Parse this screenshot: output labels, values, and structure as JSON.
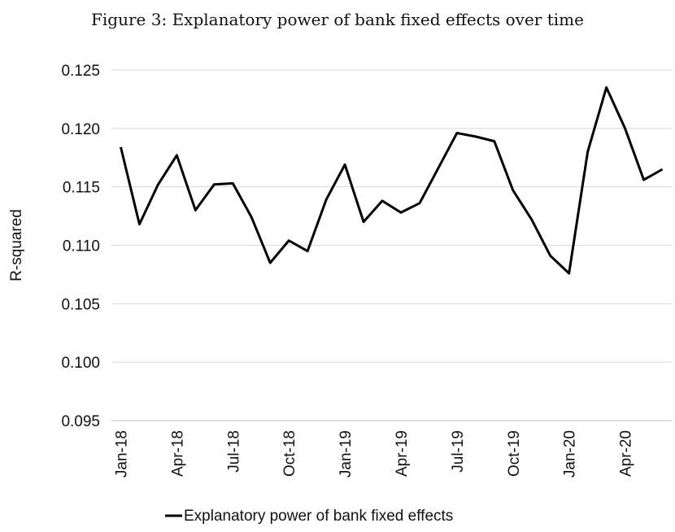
{
  "caption": "Figure 3: Explanatory power of bank fixed effects over time",
  "chart_data": {
    "type": "line",
    "title": "",
    "xlabel": "",
    "ylabel": "R-squared",
    "ylim": [
      0.095,
      0.125
    ],
    "yticks": [
      "0.095",
      "0.100",
      "0.105",
      "0.110",
      "0.115",
      "0.120",
      "0.125"
    ],
    "grid": true,
    "legend_position": "bottom",
    "x": [
      "Jan-18",
      "Feb-18",
      "Mar-18",
      "Apr-18",
      "May-18",
      "Jun-18",
      "Jul-18",
      "Aug-18",
      "Sep-18",
      "Oct-18",
      "Nov-18",
      "Dec-18",
      "Jan-19",
      "Feb-19",
      "Mar-19",
      "Apr-19",
      "May-19",
      "Jun-19",
      "Jul-19",
      "Aug-19",
      "Sep-19",
      "Oct-19",
      "Nov-19",
      "Dec-19",
      "Jan-20",
      "Feb-20",
      "Mar-20",
      "Apr-20",
      "May-20",
      "Jun-20"
    ],
    "xtick_labels": [
      "Jan-18",
      "Apr-18",
      "Jul-18",
      "Oct-18",
      "Jan-19",
      "Apr-19",
      "Jul-19",
      "Oct-19",
      "Jan-20",
      "Apr-20"
    ],
    "series": [
      {
        "name": "Explanatory power of bank fixed effects",
        "color": "#000000",
        "values": [
          0.1184,
          0.1118,
          0.1152,
          0.1177,
          0.113,
          0.1152,
          0.1153,
          0.1124,
          0.1085,
          0.1104,
          0.1095,
          0.1139,
          0.1169,
          0.112,
          0.1138,
          0.1128,
          0.1136,
          0.1166,
          0.1196,
          0.1193,
          0.1189,
          0.1147,
          0.1122,
          0.1091,
          0.1076,
          0.118,
          0.1235,
          0.12,
          0.1156,
          0.1165
        ]
      }
    ]
  }
}
